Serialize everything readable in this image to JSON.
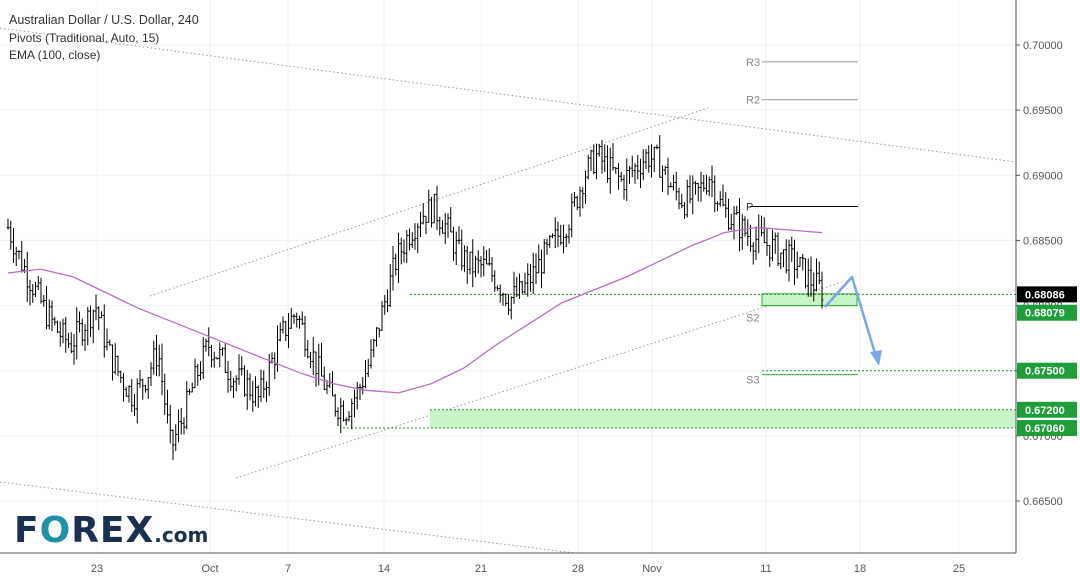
{
  "header": {
    "title": "Australian Dollar / U.S. Dollar, 240",
    "pivots_label": "Pivots (Traditional, Auto, 15)",
    "ema_label": "EMA (100, close)"
  },
  "logo": {
    "part1": "F",
    "part2": "O",
    "part3": "REX",
    "part4": ".com"
  },
  "colors": {
    "bars": "#000000",
    "ema": "#b76fc4",
    "zone": "#c8f5c8",
    "zone_border": "#3aa83a",
    "level_line": "#2a8a2a",
    "arrow": "#7aa7e8",
    "channel": "#9a9a9a",
    "label_bg": "#1e9e3a",
    "current_bg": "#000000"
  },
  "chart_data": {
    "type": "candlestick-ohlc",
    "title": "Australian Dollar / U.S. Dollar, 240",
    "x_ticks": [
      "23",
      "Oct",
      "7",
      "14",
      "21",
      "28",
      "Nov",
      "11",
      "18",
      "25"
    ],
    "y_ticks": [
      "0.70000",
      "0.69500",
      "0.69000",
      "0.68500",
      "0.68000",
      "0.67500",
      "0.67000",
      "0.66500"
    ],
    "ylim": [
      0.6615,
      0.7018
    ],
    "current_price": "0.68086",
    "price_labels": [
      "0.68079",
      "0.67500",
      "0.67200",
      "0.67060"
    ],
    "pivot_labels": {
      "R3": "R3",
      "R2": "R2",
      "P": "P",
      "S2": "S2",
      "S3": "S3"
    },
    "pivots": {
      "R3": 0.6987,
      "R2": 0.6958,
      "P": 0.6876,
      "S2": 0.68,
      "S3": 0.6747
    },
    "ema_100": [
      0.6825,
      0.6828,
      0.6822,
      0.681,
      0.6798,
      0.6788,
      0.6778,
      0.6768,
      0.6758,
      0.6748,
      0.674,
      0.6735,
      0.6733,
      0.674,
      0.6752,
      0.677,
      0.6786,
      0.6802,
      0.6812,
      0.6822,
      0.6834,
      0.6846,
      0.6856,
      0.686,
      0.6858,
      0.6856
    ],
    "price_path": [
      0.686,
      0.6835,
      0.6815,
      0.6795,
      0.678,
      0.677,
      0.6785,
      0.68,
      0.6765,
      0.6745,
      0.673,
      0.6745,
      0.6765,
      0.669,
      0.6715,
      0.6745,
      0.677,
      0.676,
      0.6745,
      0.674,
      0.6728,
      0.6755,
      0.678,
      0.6795,
      0.677,
      0.6745,
      0.6725,
      0.672,
      0.6735,
      0.676,
      0.68,
      0.6835,
      0.6855,
      0.687,
      0.6875,
      0.686,
      0.684,
      0.683,
      0.683,
      0.682,
      0.6805,
      0.681,
      0.6825,
      0.684,
      0.6855,
      0.687,
      0.69,
      0.6915,
      0.6905,
      0.6895,
      0.6905,
      0.6915,
      0.691,
      0.689,
      0.688,
      0.6885,
      0.69,
      0.6875,
      0.6865,
      0.6855,
      0.685,
      0.6845,
      0.6838,
      0.6832,
      0.682,
      0.6812
    ],
    "zones": [
      {
        "from": 0.68,
        "to": 0.6809
      },
      {
        "from": 0.6706,
        "to": 0.672
      }
    ],
    "dotted_levels": [
      0.68086,
      0.675,
      0.6706
    ]
  }
}
